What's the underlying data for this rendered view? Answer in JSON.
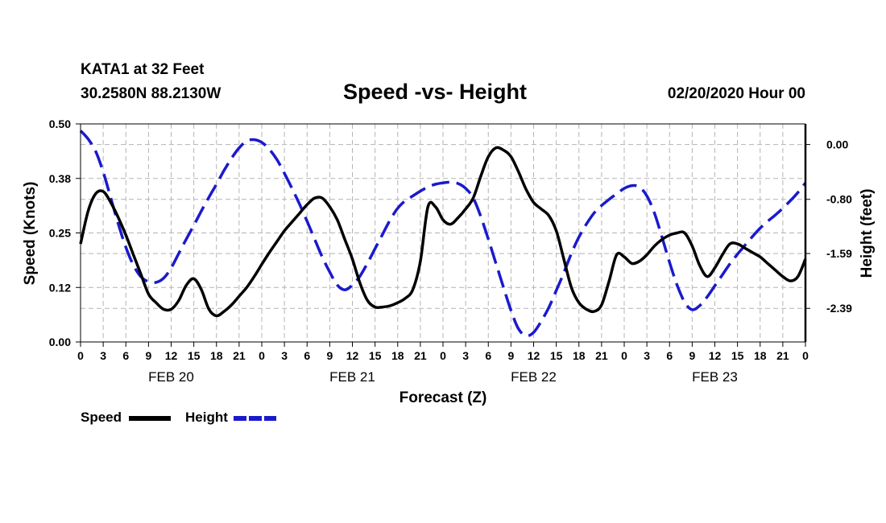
{
  "header": {
    "station": "KATA1 at 32 Feet",
    "coords": "30.2580N 88.2130W",
    "title": "Speed -vs- Height",
    "datetime": "02/20/2020 Hour 00"
  },
  "legend": {
    "speed": "Speed",
    "height": "Height"
  },
  "colors": {
    "speed": "#000000",
    "height": "#1a1acc",
    "grid": "#b4b4b4"
  },
  "chart_data": {
    "type": "line",
    "title": "Speed -vs- Height",
    "xlabel": "Forecast (Z)",
    "ylabel_left": "Speed (Knots)",
    "ylabel_right": "Height (feet)",
    "x_range_hours": [
      0,
      96
    ],
    "x_tick_labels": [
      "0",
      "3",
      "6",
      "9",
      "12",
      "15",
      "18",
      "21",
      "0",
      "3",
      "6",
      "9",
      "12",
      "15",
      "18",
      "21",
      "0",
      "3",
      "6",
      "9",
      "12",
      "15",
      "18",
      "21",
      "0",
      "3",
      "6",
      "9",
      "12",
      "15",
      "18",
      "21",
      "0"
    ],
    "day_labels": [
      {
        "hour": 12,
        "label": "FEB 20"
      },
      {
        "hour": 36,
        "label": "FEB 21"
      },
      {
        "hour": 60,
        "label": "FEB 22"
      },
      {
        "hour": 84,
        "label": "FEB 23"
      }
    ],
    "left_axis": {
      "ylim": [
        0,
        0.5
      ],
      "ticks": [
        "0.00",
        "0.12",
        "0.25",
        "0.38",
        "0.50"
      ]
    },
    "right_axis": {
      "ylim": [
        -2.88,
        0.3
      ],
      "ticks": [
        0.0,
        -0.8,
        -1.59,
        -2.39
      ],
      "tick_labels": [
        "0.00",
        "-0.80",
        "-1.59",
        "-2.39"
      ]
    },
    "grid": true,
    "series": [
      {
        "name": "Speed",
        "axis": "left",
        "style": "solid",
        "x": [
          0,
          1,
          2,
          3,
          4,
          5,
          6,
          7,
          8,
          9,
          10,
          11,
          12,
          13,
          14,
          15,
          16,
          17,
          18,
          19,
          20,
          21,
          22,
          23,
          24,
          25,
          26,
          27,
          28,
          29,
          30,
          31,
          32,
          33,
          34,
          35,
          36,
          37,
          38,
          39,
          40,
          41,
          42,
          43,
          44,
          45,
          46,
          47,
          48,
          49,
          50,
          51,
          52,
          53,
          54,
          55,
          56,
          57,
          58,
          59,
          60,
          61,
          62,
          63,
          64,
          65,
          66,
          67,
          68,
          69,
          70,
          71,
          72,
          73,
          74,
          75,
          76,
          77,
          78,
          79,
          80,
          81,
          82,
          83,
          84,
          85,
          86,
          87,
          88,
          89,
          90,
          91,
          92,
          93,
          94,
          95,
          96
        ],
        "values": [
          0.225,
          0.3,
          0.34,
          0.345,
          0.32,
          0.285,
          0.245,
          0.2,
          0.155,
          0.11,
          0.09,
          0.075,
          0.075,
          0.095,
          0.13,
          0.145,
          0.12,
          0.075,
          0.06,
          0.07,
          0.085,
          0.105,
          0.125,
          0.15,
          0.178,
          0.205,
          0.23,
          0.255,
          0.275,
          0.295,
          0.315,
          0.33,
          0.33,
          0.31,
          0.28,
          0.235,
          0.19,
          0.135,
          0.095,
          0.08,
          0.08,
          0.083,
          0.09,
          0.1,
          0.12,
          0.185,
          0.31,
          0.31,
          0.28,
          0.27,
          0.285,
          0.305,
          0.33,
          0.38,
          0.425,
          0.445,
          0.44,
          0.425,
          0.39,
          0.35,
          0.32,
          0.305,
          0.29,
          0.255,
          0.19,
          0.125,
          0.09,
          0.075,
          0.07,
          0.085,
          0.14,
          0.2,
          0.195,
          0.18,
          0.185,
          0.2,
          0.22,
          0.235,
          0.245,
          0.25,
          0.25,
          0.22,
          0.175,
          0.15,
          0.17,
          0.2,
          0.225,
          0.225,
          0.215,
          0.205,
          0.195,
          0.18,
          0.165,
          0.15,
          0.14,
          0.15,
          0.19
        ]
      },
      {
        "name": "Height",
        "axis": "right",
        "style": "dashed",
        "x": [
          0,
          1,
          2,
          3,
          4,
          5,
          6,
          7,
          8,
          9,
          10,
          11,
          12,
          13,
          14,
          15,
          16,
          17,
          18,
          19,
          20,
          21,
          22,
          23,
          24,
          25,
          26,
          27,
          28,
          29,
          30,
          31,
          32,
          33,
          34,
          35,
          36,
          37,
          38,
          39,
          40,
          41,
          42,
          43,
          44,
          45,
          46,
          47,
          48,
          49,
          50,
          51,
          52,
          53,
          54,
          55,
          56,
          57,
          58,
          59,
          60,
          61,
          62,
          63,
          64,
          65,
          66,
          67,
          68,
          69,
          70,
          71,
          72,
          73,
          74,
          75,
          76,
          77,
          78,
          79,
          80,
          81,
          82,
          83,
          84,
          85,
          86,
          87,
          88,
          89,
          90,
          91,
          92,
          93,
          94,
          95,
          96
        ],
        "values": [
          0.2,
          0.08,
          -0.1,
          -0.4,
          -0.78,
          -1.16,
          -1.5,
          -1.76,
          -1.93,
          -2.0,
          -2.01,
          -1.95,
          -1.8,
          -1.59,
          -1.38,
          -1.18,
          -0.97,
          -0.77,
          -0.58,
          -0.38,
          -0.2,
          -0.05,
          0.05,
          0.07,
          0.03,
          -0.07,
          -0.22,
          -0.42,
          -0.64,
          -0.87,
          -1.12,
          -1.38,
          -1.64,
          -1.86,
          -2.05,
          -2.12,
          -2.05,
          -1.92,
          -1.73,
          -1.52,
          -1.31,
          -1.1,
          -0.93,
          -0.82,
          -0.75,
          -0.68,
          -0.62,
          -0.58,
          -0.56,
          -0.55,
          -0.57,
          -0.64,
          -0.78,
          -1.05,
          -1.38,
          -1.73,
          -2.08,
          -2.42,
          -2.69,
          -2.79,
          -2.74,
          -2.58,
          -2.38,
          -2.13,
          -1.87,
          -1.59,
          -1.35,
          -1.16,
          -1.0,
          -0.89,
          -0.8,
          -0.72,
          -0.64,
          -0.6,
          -0.62,
          -0.75,
          -1.0,
          -1.35,
          -1.72,
          -2.05,
          -2.3,
          -2.41,
          -2.35,
          -2.22,
          -2.06,
          -1.9,
          -1.74,
          -1.6,
          -1.47,
          -1.34,
          -1.22,
          -1.12,
          -1.03,
          -0.93,
          -0.82,
          -0.7,
          -0.56
        ]
      }
    ]
  }
}
